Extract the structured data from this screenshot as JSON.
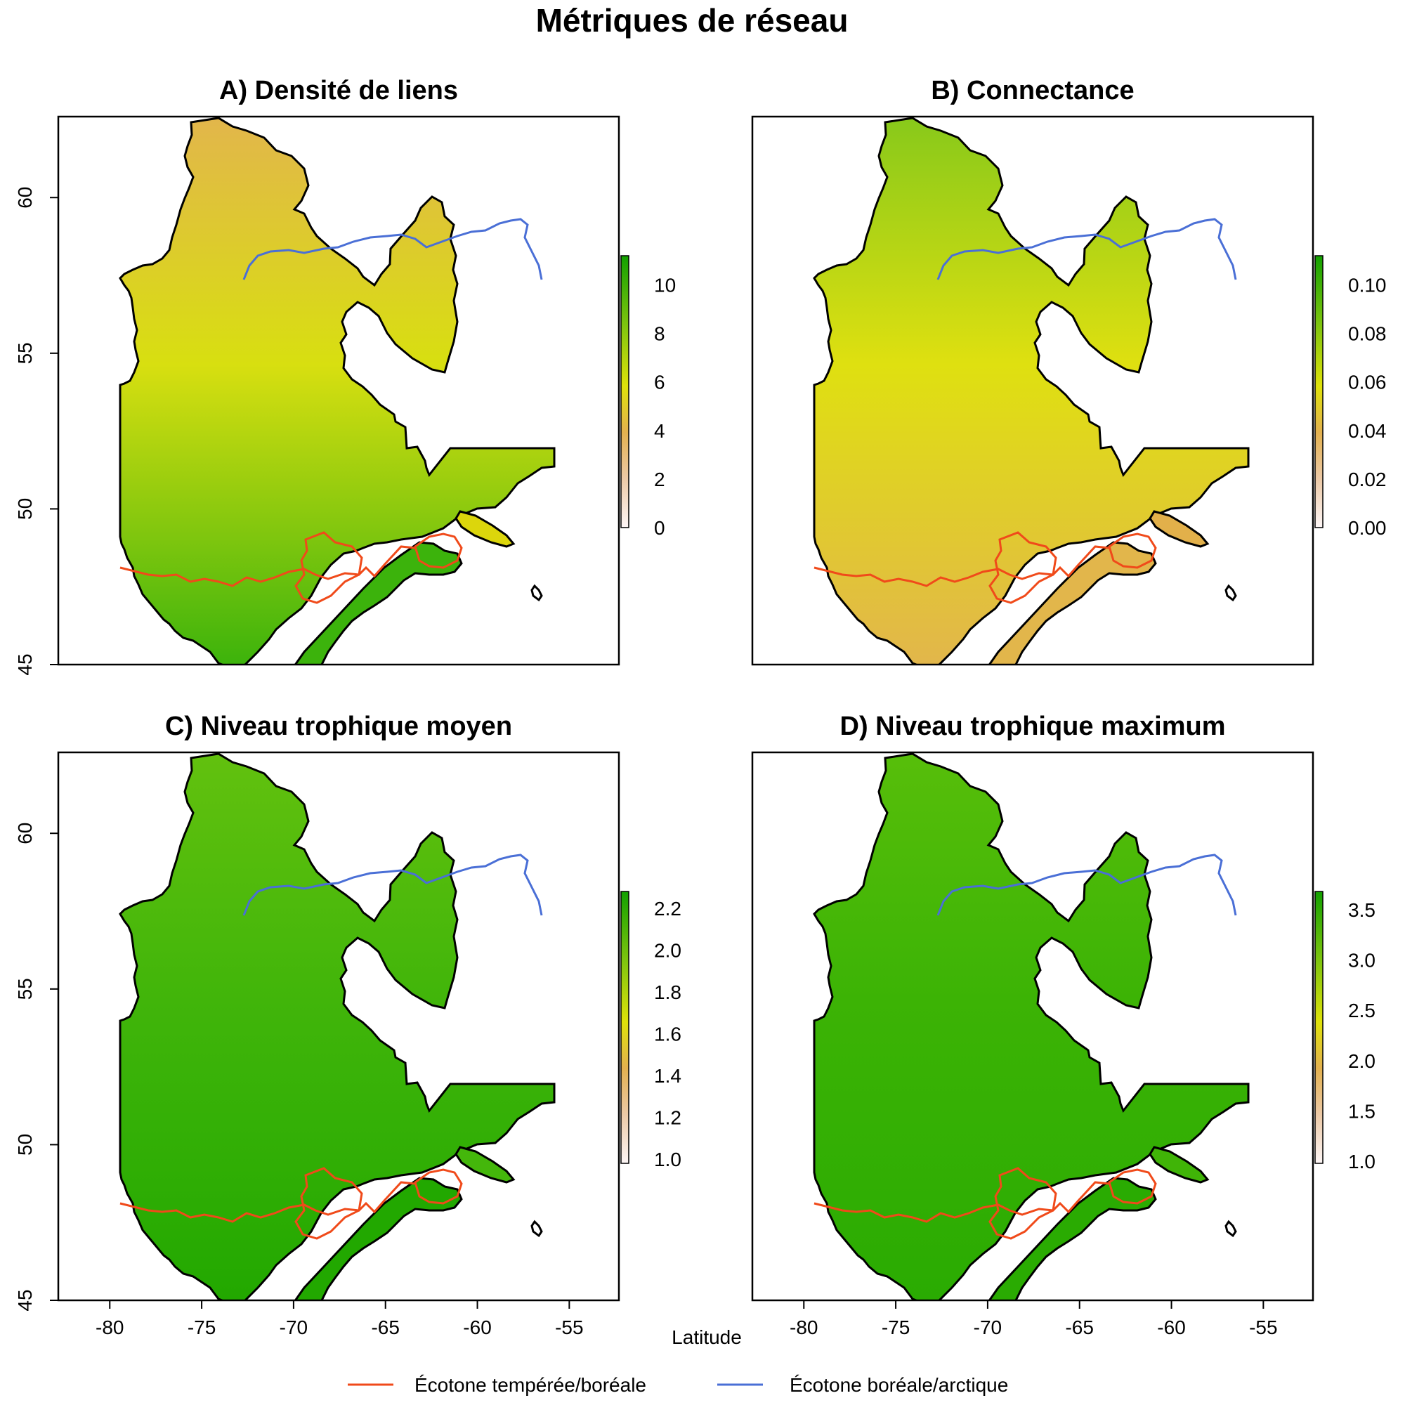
{
  "main_title": "Métriques de réseau",
  "x_axis_label": "Latitude",
  "x_ticks": [
    "-80",
    "-75",
    "-70",
    "-65",
    "-60",
    "-55"
  ],
  "y_ticks": [
    "60",
    "55",
    "50",
    "45"
  ],
  "x_tick_values": [
    -80,
    -75,
    -70,
    -65,
    -60,
    -55
  ],
  "y_tick_values": [
    60,
    55,
    50,
    45
  ],
  "lon_range": [
    -82.8,
    -52.3
  ],
  "lat_range": [
    45.0,
    62.6
  ],
  "colors": {
    "temperate_boreal_line": "#f04a1a",
    "boreal_arctic_line": "#4a6fd6",
    "coast": "#000000"
  },
  "legend": {
    "temperate_boreal": "Écotone tempérée/boréale",
    "boreal_arctic": "Écotone boréale/arctique"
  },
  "panels": [
    {
      "id": "A",
      "title": "A) Densité de liens",
      "colorbar_ticks": [
        "10",
        "8",
        "6",
        "4",
        "2",
        "0"
      ],
      "colorbar_values": [
        10,
        8,
        6,
        4,
        2,
        0
      ],
      "colorbar_range": [
        0,
        11.2
      ],
      "fill_north": "#e2b64b",
      "fill_mid": "#d8df10",
      "fill_south": "#3cb30c",
      "island_fill": "#dcd60c",
      "show_x_axis": false,
      "show_y_axis": true
    },
    {
      "id": "B",
      "title": "B) Connectance",
      "colorbar_ticks": [
        "0.10",
        "0.08",
        "0.06",
        "0.04",
        "0.02",
        "0.00"
      ],
      "colorbar_values": [
        0.1,
        0.08,
        0.06,
        0.04,
        0.02,
        0.0
      ],
      "colorbar_range": [
        0,
        0.112
      ],
      "fill_north": "#88c91a",
      "fill_mid": "#dfe010",
      "fill_south": "#e2b64b",
      "island_fill": "#e2b04a",
      "show_x_axis": false,
      "show_y_axis": false
    },
    {
      "id": "C",
      "title": "C) Niveau trophique moyen",
      "colorbar_ticks": [
        "2.2",
        "2.0",
        "1.8",
        "1.6",
        "1.4",
        "1.2",
        "1.0"
      ],
      "colorbar_values": [
        2.2,
        2.0,
        1.8,
        1.6,
        1.4,
        1.2,
        1.0
      ],
      "colorbar_range": [
        0.98,
        2.28
      ],
      "fill_north": "#62c10e",
      "fill_mid": "#41b50a",
      "fill_south": "#22a800",
      "island_fill": "#44b70b",
      "show_x_axis": true,
      "show_y_axis": true
    },
    {
      "id": "D",
      "title": "D) Niveau trophique maximum",
      "colorbar_ticks": [
        "3.5",
        "3.0",
        "2.5",
        "2.0",
        "1.5",
        "1.0"
      ],
      "colorbar_values": [
        3.5,
        3.0,
        2.5,
        2.0,
        1.5,
        1.0
      ],
      "colorbar_range": [
        0.98,
        3.68
      ],
      "fill_north": "#57be0a",
      "fill_mid": "#3cb305",
      "fill_south": "#2aab02",
      "island_fill": "#40b407",
      "show_x_axis": true,
      "show_y_axis": false
    }
  ]
}
